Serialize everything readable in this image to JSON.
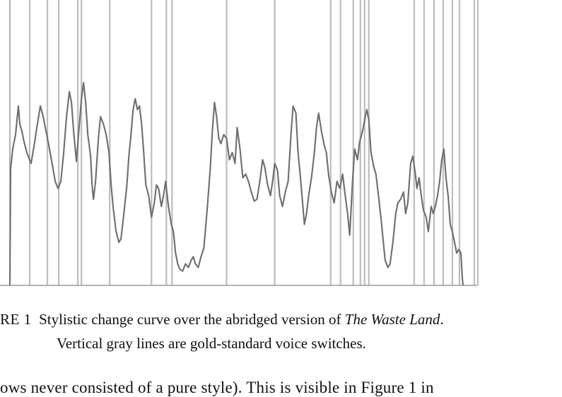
{
  "caption": {
    "label": "RE 1",
    "text_before": "Stylistic change curve over the abridged version of ",
    "title": "The Waste Land",
    "text_after": ".",
    "line2": "Vertical gray lines are gold-standard voice switches."
  },
  "body_text": "ows never consisted of a pure style). This is visible in Figure 1 in",
  "colors": {
    "curve": "#6e6e6e",
    "switch_lines": "#bdbdbd",
    "axis": "#9a9a9a"
  },
  "chart_data": {
    "type": "line",
    "title": "",
    "xlabel": "",
    "ylabel": "",
    "grid": false,
    "xlim": [
      0,
      660
    ],
    "ylim": [
      0,
      1
    ],
    "voice_switches": [
      28,
      53,
      69,
      96,
      101,
      141,
      200,
      221,
      229,
      306,
      374,
      453,
      467,
      485,
      495,
      501,
      507,
      571,
      585,
      599,
      612,
      625,
      635,
      656,
      661
    ],
    "series": [
      {
        "points": [
          [
            0,
            0.0
          ],
          [
            1,
            0.65
          ],
          [
            4,
            0.76
          ],
          [
            8,
            0.84
          ],
          [
            12,
            1.0
          ],
          [
            14,
            0.9
          ],
          [
            17,
            0.86
          ],
          [
            20,
            0.8
          ],
          [
            24,
            0.74
          ],
          [
            27,
            0.71
          ],
          [
            30,
            0.68
          ],
          [
            35,
            0.8
          ],
          [
            38,
            0.88
          ],
          [
            43,
            1.0
          ],
          [
            47,
            0.94
          ],
          [
            52,
            0.84
          ],
          [
            55,
            0.78
          ],
          [
            60,
            0.67
          ],
          [
            64,
            0.58
          ],
          [
            68,
            0.54
          ],
          [
            72,
            0.58
          ],
          [
            76,
            0.74
          ],
          [
            80,
            0.94
          ],
          [
            84,
            1.08
          ],
          [
            87,
            1.02
          ],
          [
            90,
            0.86
          ],
          [
            94,
            0.69
          ],
          [
            97,
            0.84
          ],
          [
            101,
            1.04
          ],
          [
            104,
            1.13
          ],
          [
            107,
            1.02
          ],
          [
            110,
            0.84
          ],
          [
            114,
            0.72
          ],
          [
            116,
            0.56
          ],
          [
            118,
            0.48
          ],
          [
            121,
            0.58
          ],
          [
            125,
            0.82
          ],
          [
            128,
            0.94
          ],
          [
            132,
            0.9
          ],
          [
            136,
            0.84
          ],
          [
            140,
            0.74
          ],
          [
            143,
            0.56
          ],
          [
            146,
            0.43
          ],
          [
            150,
            0.3
          ],
          [
            154,
            0.24
          ],
          [
            157,
            0.26
          ],
          [
            161,
            0.4
          ],
          [
            165,
            0.55
          ],
          [
            168,
            0.72
          ],
          [
            171,
            0.84
          ],
          [
            174,
            0.98
          ],
          [
            177,
            1.04
          ],
          [
            180,
            0.98
          ],
          [
            183,
            1.0
          ],
          [
            186,
            0.9
          ],
          [
            189,
            0.74
          ],
          [
            192,
            0.56
          ],
          [
            196,
            0.5
          ],
          [
            200,
            0.38
          ],
          [
            204,
            0.46
          ],
          [
            207,
            0.56
          ],
          [
            210,
            0.54
          ],
          [
            214,
            0.44
          ],
          [
            217,
            0.5
          ],
          [
            220,
            0.58
          ],
          [
            224,
            0.44
          ],
          [
            228,
            0.34
          ],
          [
            231,
            0.3
          ],
          [
            234,
            0.18
          ],
          [
            237,
            0.12
          ],
          [
            240,
            0.09
          ],
          [
            244,
            0.08
          ],
          [
            248,
            0.12
          ],
          [
            252,
            0.1
          ],
          [
            256,
            0.14
          ],
          [
            259,
            0.16
          ],
          [
            262,
            0.12
          ],
          [
            266,
            0.1
          ],
          [
            270,
            0.16
          ],
          [
            274,
            0.21
          ],
          [
            276,
            0.3
          ],
          [
            279,
            0.44
          ],
          [
            283,
            0.65
          ],
          [
            286,
            0.86
          ],
          [
            289,
            1.02
          ],
          [
            292,
            0.94
          ],
          [
            295,
            0.82
          ],
          [
            298,
            0.79
          ],
          [
            302,
            0.84
          ],
          [
            306,
            0.82
          ],
          [
            310,
            0.7
          ],
          [
            314,
            0.74
          ],
          [
            318,
            0.68
          ],
          [
            321,
            0.88
          ],
          [
            325,
            0.76
          ],
          [
            329,
            0.6
          ],
          [
            333,
            0.62
          ],
          [
            337,
            0.58
          ],
          [
            341,
            0.52
          ],
          [
            345,
            0.47
          ],
          [
            349,
            0.48
          ],
          [
            353,
            0.58
          ],
          [
            357,
            0.7
          ],
          [
            360,
            0.66
          ],
          [
            364,
            0.56
          ],
          [
            368,
            0.5
          ],
          [
            371,
            0.58
          ],
          [
            374,
            0.68
          ],
          [
            378,
            0.64
          ],
          [
            381,
            0.5
          ],
          [
            385,
            0.44
          ],
          [
            389,
            0.52
          ],
          [
            393,
            0.58
          ],
          [
            397,
            0.84
          ],
          [
            400,
            1.0
          ],
          [
            404,
            0.96
          ],
          [
            407,
            0.74
          ],
          [
            410,
            0.62
          ],
          [
            413,
            0.48
          ],
          [
            416,
            0.34
          ],
          [
            419,
            0.4
          ],
          [
            422,
            0.5
          ],
          [
            426,
            0.6
          ],
          [
            430,
            0.74
          ],
          [
            433,
            0.88
          ],
          [
            436,
            0.96
          ],
          [
            440,
            0.86
          ],
          [
            444,
            0.78
          ],
          [
            447,
            0.74
          ],
          [
            450,
            0.62
          ],
          [
            454,
            0.52
          ],
          [
            458,
            0.46
          ],
          [
            462,
            0.58
          ],
          [
            466,
            0.54
          ],
          [
            470,
            0.62
          ],
          [
            473,
            0.52
          ],
          [
            477,
            0.4
          ],
          [
            480,
            0.28
          ],
          [
            484,
            0.58
          ],
          [
            487,
            0.76
          ],
          [
            491,
            0.7
          ],
          [
            494,
            0.8
          ],
          [
            498,
            0.86
          ],
          [
            501,
            0.92
          ],
          [
            504,
            0.98
          ],
          [
            507,
            0.92
          ],
          [
            510,
            0.74
          ],
          [
            514,
            0.66
          ],
          [
            517,
            0.62
          ],
          [
            520,
            0.52
          ],
          [
            524,
            0.38
          ],
          [
            527,
            0.26
          ],
          [
            530,
            0.14
          ],
          [
            534,
            0.1
          ],
          [
            537,
            0.12
          ],
          [
            541,
            0.24
          ],
          [
            545,
            0.4
          ],
          [
            548,
            0.46
          ],
          [
            552,
            0.48
          ],
          [
            556,
            0.52
          ],
          [
            559,
            0.4
          ],
          [
            562,
            0.46
          ],
          [
            566,
            0.68
          ],
          [
            569,
            0.72
          ],
          [
            572,
            0.64
          ],
          [
            575,
            0.54
          ],
          [
            578,
            0.6
          ],
          [
            581,
            0.5
          ],
          [
            584,
            0.42
          ],
          [
            588,
            0.38
          ],
          [
            591,
            0.3
          ],
          [
            595,
            0.44
          ],
          [
            598,
            0.4
          ],
          [
            601,
            0.44
          ],
          [
            604,
            0.5
          ],
          [
            607,
            0.58
          ],
          [
            610,
            0.7
          ],
          [
            613,
            0.76
          ],
          [
            616,
            0.6
          ],
          [
            619,
            0.5
          ],
          [
            622,
            0.34
          ],
          [
            625,
            0.3
          ],
          [
            628,
            0.24
          ],
          [
            631,
            0.18
          ],
          [
            634,
            0.2
          ],
          [
            637,
            0.18
          ],
          [
            639,
            0.04
          ],
          [
            640,
            0.0
          ]
        ]
      }
    ]
  }
}
